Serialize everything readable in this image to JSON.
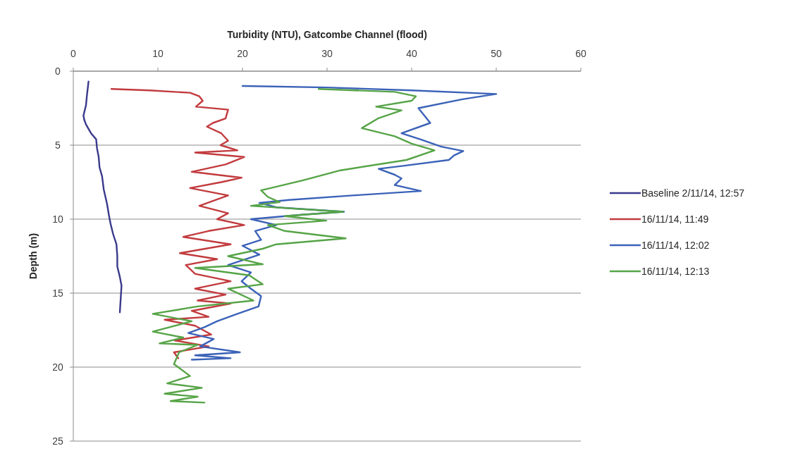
{
  "chart_data": {
    "type": "line",
    "xlabel": "Turbidity (NTU), Gatcombe Channel (flood)",
    "ylabel": "Depth (m)",
    "xlim": [
      0,
      60
    ],
    "xticks": [
      0,
      10,
      20,
      30,
      40,
      50,
      60
    ],
    "ylim": [
      25,
      0
    ],
    "yticks": [
      0,
      5,
      10,
      15,
      20,
      25
    ],
    "grid": "y",
    "legend": "right",
    "line_style": "solid",
    "series": [
      {
        "name": "Baseline 2/11/14, 12:57",
        "color": "#3a3a8c",
        "x": [
          1.8,
          1.7,
          1.6,
          1.5,
          1.2,
          1.3,
          1.5,
          2.1,
          2.7,
          2.8,
          3.0,
          3.1,
          3.4,
          3.6,
          4.0,
          4.2,
          4.4,
          4.7,
          5.1,
          5.2,
          5.2,
          5.5,
          5.7,
          5.6,
          5.5
        ],
        "values": [
          0.7,
          1.2,
          1.7,
          2.3,
          3.0,
          3.3,
          3.6,
          4.2,
          4.6,
          5.2,
          5.8,
          6.5,
          7.1,
          8.0,
          9.0,
          9.7,
          10.3,
          11.0,
          11.7,
          12.5,
          13.2,
          13.9,
          14.5,
          15.4,
          16.3
        ]
      },
      {
        "name": "16/11/14, 11:49",
        "color": "#c23b3e",
        "x": [
          4.5,
          9,
          13.8,
          14.9,
          15.3,
          14.5,
          18.3,
          18,
          16.5,
          15.8,
          17.5,
          18.3,
          17.4,
          19.4,
          14.4,
          20.2,
          18,
          14,
          19.9,
          17.5,
          13.8,
          18.3,
          14.9,
          18.3,
          17,
          20.2,
          16,
          13,
          18.6,
          12.6,
          17,
          13.3,
          14.4,
          18.6,
          14.4,
          18,
          14.7,
          18.6,
          14,
          16,
          10.8,
          14.4,
          16.3,
          12,
          16,
          11.9,
          12.4
        ],
        "values": [
          1.2,
          1.3,
          1.46,
          1.7,
          2.0,
          2.4,
          2.6,
          3.2,
          3.5,
          3.75,
          4.2,
          4.7,
          5.0,
          5.35,
          5.5,
          5.8,
          6.3,
          6.8,
          7.2,
          7.5,
          7.9,
          8.4,
          9.1,
          9.6,
          10.0,
          10.4,
          10.8,
          11.2,
          11.7,
          12.3,
          12.7,
          13.1,
          13.7,
          14.2,
          14.7,
          15.1,
          15.5,
          15.7,
          16.2,
          16.6,
          16.8,
          17.2,
          17.8,
          18.2,
          18.6,
          19.0,
          19.4
        ]
      },
      {
        "name": "16/11/14, 12:02",
        "color": "#3b62b8",
        "x": [
          20,
          30,
          40,
          50,
          46,
          40.8,
          41.5,
          42.2,
          38.8,
          41,
          43.5,
          46.1,
          45,
          44.4,
          39,
          36.1,
          38,
          38.8,
          38,
          41.1,
          33,
          25.5,
          22,
          24,
          32,
          27,
          21,
          24,
          21.5,
          22.2,
          20,
          22,
          18.3,
          21,
          19.9,
          21,
          22.2,
          21.9,
          19.4,
          17,
          15.5,
          13.6,
          16.6,
          15,
          19.7,
          14.4,
          18.6,
          14
        ],
        "values": [
          1.0,
          1.1,
          1.3,
          1.54,
          1.9,
          2.5,
          3.0,
          3.5,
          4.2,
          4.6,
          5.1,
          5.4,
          5.7,
          6.0,
          6.4,
          6.6,
          7.0,
          7.25,
          7.7,
          8.1,
          8.4,
          8.7,
          8.9,
          9.2,
          9.5,
          9.7,
          10.0,
          10.4,
          10.8,
          11.4,
          11.8,
          12.4,
          13.1,
          13.6,
          14.2,
          14.7,
          15.2,
          15.9,
          16.4,
          16.9,
          17.3,
          17.7,
          18.1,
          18.6,
          19.0,
          19.2,
          19.4,
          19.5
        ]
      },
      {
        "name": "16/11/14, 12:13",
        "color": "#56a447",
        "x": [
          29,
          38,
          40.5,
          40,
          35.8,
          38.8,
          36,
          34.1,
          38,
          40,
          42.7,
          39.4,
          31.6,
          27,
          22.2,
          23,
          24.4,
          21,
          31.9,
          25,
          29.9,
          23,
          25,
          32.2,
          24,
          22.4,
          18.3,
          22.4,
          14.4,
          20.8,
          22.4,
          18.3,
          21.3,
          14.7,
          9.4,
          14,
          9.4,
          13,
          10.2,
          14.7,
          12.5,
          11.9,
          13.8,
          11.1,
          15.2,
          10.8,
          14.7,
          11.5,
          15.5
        ],
        "values": [
          1.2,
          1.4,
          1.7,
          2.0,
          2.4,
          2.65,
          3.2,
          3.85,
          4.4,
          4.9,
          5.35,
          6.0,
          6.7,
          7.4,
          8.05,
          8.5,
          8.85,
          9.1,
          9.5,
          9.8,
          10.1,
          10.4,
          10.8,
          11.3,
          11.7,
          12.0,
          12.5,
          13.05,
          13.3,
          13.8,
          14.4,
          14.7,
          15.5,
          15.9,
          16.4,
          16.9,
          17.6,
          18.0,
          18.4,
          18.5,
          19.0,
          19.8,
          20.6,
          21.1,
          21.4,
          21.8,
          22.0,
          22.3,
          22.4
        ]
      }
    ]
  }
}
